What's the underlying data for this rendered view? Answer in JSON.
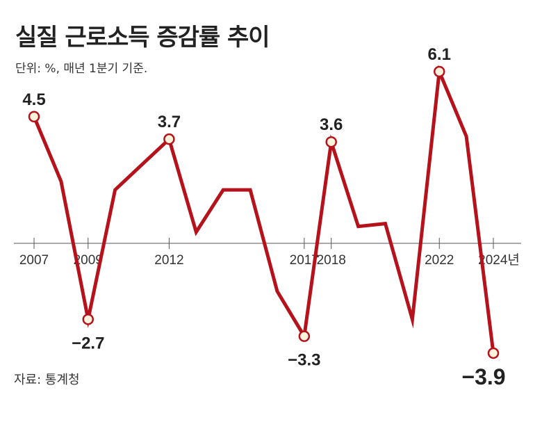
{
  "header": {
    "title": "실질 근로소득 증감률 추이",
    "subtitle": "단위: %, 매년 1분기 기준.",
    "source": "자료: 통계청"
  },
  "colors": {
    "line": "#b5121b",
    "marker_fill": "#fdf3dc",
    "axis": "#555555",
    "text": "#222222"
  },
  "chart_data": {
    "type": "line",
    "title": "실질 근로소득 증감률 추이",
    "unit": "%",
    "x": [
      2007,
      2008,
      2009,
      2010,
      2011,
      2012,
      2013,
      2014,
      2015,
      2016,
      2017,
      2018,
      2019,
      2020,
      2021,
      2022,
      2023,
      2024
    ],
    "series": [
      {
        "name": "실질 근로소득 증감률",
        "values": [
          4.5,
          2.2,
          -2.7,
          1.9,
          2.8,
          3.7,
          0.4,
          1.9,
          1.9,
          -1.7,
          -3.3,
          3.6,
          0.6,
          0.7,
          -2.7,
          6.1,
          3.8,
          -3.9
        ]
      }
    ],
    "x_tick_labels": [
      {
        "x": 2007,
        "label": "2007"
      },
      {
        "x": 2009,
        "label": "2009"
      },
      {
        "x": 2012,
        "label": "2012"
      },
      {
        "x": 2017,
        "label": "2017"
      },
      {
        "x": 2018,
        "label": "2018"
      },
      {
        "x": 2022,
        "label": "2022"
      },
      {
        "x": 2024,
        "label": "2024년"
      }
    ],
    "data_labels": [
      {
        "x": 2007,
        "label": "4.5"
      },
      {
        "x": 2009,
        "label": "−2.7"
      },
      {
        "x": 2012,
        "label": "3.7"
      },
      {
        "x": 2017,
        "label": "−3.3"
      },
      {
        "x": 2018,
        "label": "3.6"
      },
      {
        "x": 2022,
        "label": "6.1"
      },
      {
        "x": 2024,
        "label": "−3.9",
        "highlight": true
      }
    ],
    "ylim": [
      -4.5,
      6.5
    ]
  }
}
